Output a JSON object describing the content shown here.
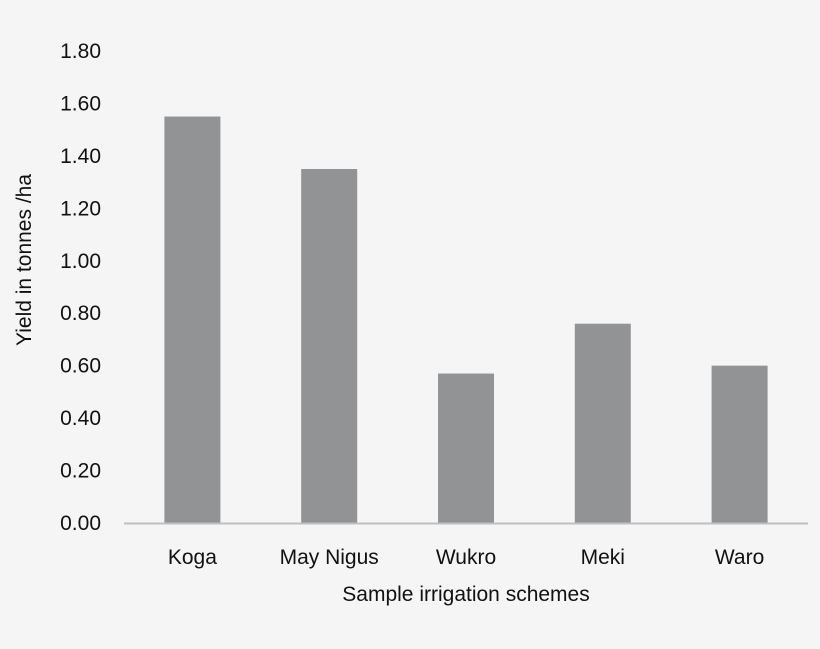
{
  "colors": {
    "background": "#f5f5f5",
    "bar": "#929395",
    "axis": "#bfbfbf",
    "text": "#111111"
  },
  "chart_data": {
    "type": "bar",
    "categories": [
      "Koga",
      "May Nigus",
      "Wukro",
      "Meki",
      "Waro"
    ],
    "values": [
      1.55,
      1.35,
      0.57,
      0.76,
      0.6
    ],
    "title": "",
    "xlabel": "Sample irrigation schemes",
    "ylabel": "Yield in tonnes /ha",
    "ylim": [
      0,
      1.8
    ],
    "yticks": [
      "0.00",
      "0.20",
      "0.40",
      "0.60",
      "0.80",
      "1.00",
      "1.20",
      "1.40",
      "1.60",
      "1.80"
    ],
    "grid": false,
    "legend": "none"
  }
}
